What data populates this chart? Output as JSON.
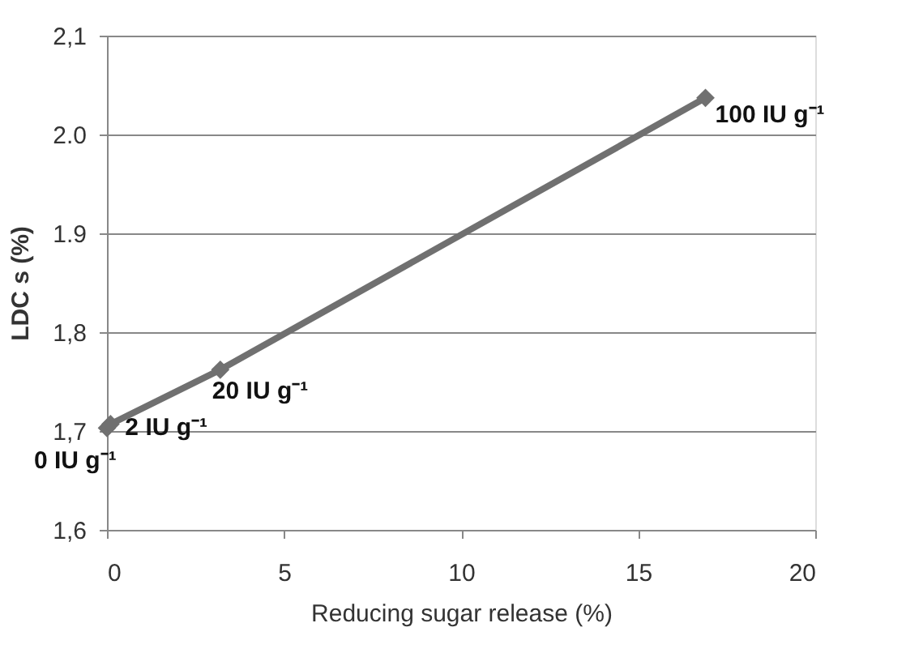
{
  "chart_data": {
    "type": "line",
    "xlabel": "Reducing sugar release (%)",
    "ylabel": "LDC s (%)",
    "x": [
      0,
      0.1,
      3.2,
      16.9
    ],
    "series": [
      {
        "color": "#707070",
        "values": [
          1.703,
          1.707,
          1.762,
          2.037
        ]
      }
    ],
    "xlim": [
      0,
      20
    ],
    "xticks": [
      0,
      5,
      10,
      15,
      20
    ],
    "ylim": [
      1.6,
      2.1
    ],
    "yticks": [
      {
        "value": 1.6,
        "label": "1,6"
      },
      {
        "value": 1.7,
        "label": "1,7"
      },
      {
        "value": 1.8,
        "label": "1,8"
      },
      {
        "value": 1.9,
        "label": "1.9"
      },
      {
        "value": 2.0,
        "label": "2.0"
      },
      {
        "value": 2.1,
        "label": "2,1"
      }
    ],
    "grid": "y",
    "marker": "diamond",
    "line_style": "solid",
    "annotations": [
      {
        "text": "0 IU g⁻¹",
        "x": 0,
        "y": 1.703
      },
      {
        "text": "2 IU g⁻¹",
        "x": 0.1,
        "y": 1.707
      },
      {
        "text": "20 IU g⁻¹",
        "x": 3.2,
        "y": 1.762
      },
      {
        "text": "100 IU g⁻¹",
        "x": 16.9,
        "y": 2.037
      }
    ]
  }
}
